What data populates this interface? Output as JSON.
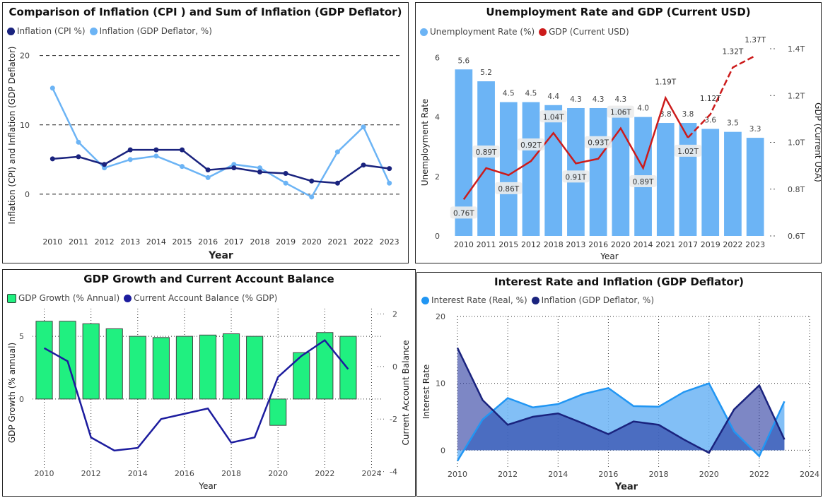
{
  "chart_data": [
    {
      "type": "line",
      "title": "Comparison of Inflation (CPI ) and Sum of Inflation (GDP Deflator)",
      "xlabel": "Year",
      "ylabel": "Inflation (CPI) and Inflation (GDP Deflator)",
      "categories": [
        "2010",
        "2011",
        "2012",
        "2013",
        "2014",
        "2015",
        "2016",
        "2017",
        "2018",
        "2019",
        "2020",
        "2021",
        "2022",
        "2023"
      ],
      "ylim": [
        -5,
        22
      ],
      "yticks": [
        "0",
        "10",
        "20"
      ],
      "series": [
        {
          "name": "Inflation (CPI %)",
          "color": "#1a237e",
          "values": [
            5.1,
            5.4,
            4.3,
            6.4,
            6.4,
            6.4,
            3.5,
            3.8,
            3.2,
            3.0,
            1.9,
            1.6,
            4.2,
            3.7
          ]
        },
        {
          "name": "Inflation (GDP Deflator, %)",
          "color": "#6cb4f5",
          "values": [
            15.3,
            7.5,
            3.8,
            5.0,
            5.5,
            4.0,
            2.4,
            4.3,
            3.8,
            1.6,
            -0.4,
            6.1,
            9.7,
            1.6
          ]
        }
      ]
    },
    {
      "type": "bar",
      "title": "Unemployment Rate and GDP (Current USD)",
      "xlabel": "Year",
      "ylabel": "Unemployment Rate",
      "y2label": "GDP (Current USA)",
      "categories": [
        "2010",
        "2011",
        "2015",
        "2012",
        "2018",
        "2013",
        "2016",
        "2020",
        "2014",
        "2021",
        "2017",
        "2019",
        "2022",
        "2023"
      ],
      "ylim": [
        0,
        6.2
      ],
      "yticks": [
        "0",
        "2",
        "4",
        "6"
      ],
      "y2lim": [
        0.6,
        1.4
      ],
      "y2ticks": [
        "0.6T",
        "0.8T",
        "1.0T",
        "1.2T",
        "1.4T"
      ],
      "series": [
        {
          "name": "Unemployment Rate (%)",
          "color": "#6cb4f5",
          "values": [
            5.6,
            5.2,
            4.5,
            4.5,
            4.4,
            4.3,
            4.3,
            4.3,
            4.0,
            3.8,
            3.8,
            3.6,
            3.5,
            3.3
          ],
          "labels": [
            "5.6",
            "5.2",
            "4.5",
            "4.5",
            "4.4",
            "4.3",
            "4.3",
            "4.3",
            "4.0",
            "3.8",
            "3.8",
            "3.6",
            "3.5",
            "3.3"
          ]
        },
        {
          "name": "GDP (Current USD)",
          "color": "#cc1b1b",
          "values": [
            0.756,
            0.89,
            0.86,
            0.92,
            1.04,
            0.91,
            0.93,
            1.06,
            0.89,
            1.19,
            1.02,
            1.12,
            1.32,
            1.37
          ],
          "labels": [
            "0.76T",
            "0.89T",
            "0.86T",
            "0.92T",
            "1.04T",
            "0.91T",
            "0.93T",
            "1.06T",
            "0.89T",
            "1.19T",
            "1.02T",
            "1.12T",
            "1.32T",
            "1.37T"
          ]
        }
      ]
    },
    {
      "type": "bar",
      "title": "GDP Growth and Current Account Balance",
      "xlabel": "Year",
      "ylabel": "GDP Growth (% annual)",
      "y2label": "Current Account Balance",
      "x": [
        2010,
        2011,
        2012,
        2013,
        2014,
        2015,
        2016,
        2017,
        2018,
        2019,
        2020,
        2021,
        2022,
        2023
      ],
      "xlim": [
        2009.5,
        2024.5
      ],
      "xticks": [
        "2010",
        "2012",
        "2014",
        "2016",
        "2018",
        "2020",
        "2022",
        "2024"
      ],
      "ylim": [
        -6.2,
        7.2
      ],
      "yticks": [
        "0",
        "5"
      ],
      "y2lim": [
        -4.2,
        2.2
      ],
      "y2ticks": [
        "-4",
        "-2",
        "0",
        "2"
      ],
      "series": [
        {
          "name": "GDP Growth (% Annual)",
          "color": "#20f080",
          "values": [
            6.2,
            6.2,
            6.0,
            5.6,
            5.0,
            4.9,
            5.0,
            5.1,
            5.2,
            5.0,
            -2.1,
            3.7,
            5.3,
            5.0
          ]
        },
        {
          "name": "Current Account Balance (% GDP)",
          "color": "#1c1c9e",
          "values": [
            0.7,
            0.2,
            -2.7,
            -3.2,
            -3.1,
            -2.0,
            -1.8,
            -1.6,
            -2.9,
            -2.7,
            -0.4,
            0.4,
            1.0,
            -0.1
          ]
        }
      ]
    },
    {
      "type": "area",
      "title": "Interest Rate and Inflation (GDP Deflator)",
      "xlabel": "Year",
      "ylabel": "Interest Rate",
      "x": [
        2010,
        2011,
        2012,
        2013,
        2014,
        2015,
        2016,
        2017,
        2018,
        2019,
        2020,
        2021,
        2022,
        2023
      ],
      "xlim": [
        2010,
        2024
      ],
      "xticks": [
        "2010",
        "2012",
        "2014",
        "2016",
        "2018",
        "2020",
        "2022",
        "2024"
      ],
      "ylim": [
        -2.5,
        20
      ],
      "yticks": [
        "0",
        "10",
        "20"
      ],
      "series": [
        {
          "name": "Interest Rate (Real, %)",
          "color": "#2196f3",
          "values": [
            -1.6,
            4.6,
            7.8,
            6.4,
            6.9,
            8.4,
            9.3,
            6.6,
            6.5,
            8.7,
            10.0,
            2.8,
            -0.9,
            7.3
          ]
        },
        {
          "name": "Inflation (GDP Deflator, %)",
          "color": "#1a237e",
          "values": [
            15.3,
            7.5,
            3.8,
            5.0,
            5.5,
            4.0,
            2.4,
            4.3,
            3.8,
            1.6,
            -0.4,
            6.1,
            9.7,
            1.6
          ]
        }
      ]
    }
  ]
}
